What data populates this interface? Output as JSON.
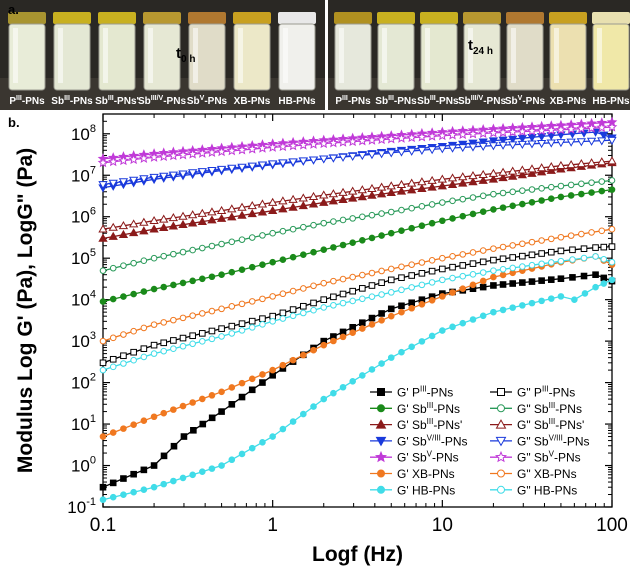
{
  "panel_a": {
    "label": "a.",
    "left_time": "t0 h",
    "left_time_main": "t",
    "left_time_sub": "0 h",
    "right_time_main": "t",
    "right_time_sub": "24 h",
    "left_vials": [
      {
        "main": "P",
        "sup": "III",
        "suffix": "-PNs",
        "liquid": "#e8ecd8",
        "cap": "#a89430"
      },
      {
        "main": "Sb",
        "sup": "III",
        "suffix": "-PNs",
        "liquid": "#e4e8d4",
        "cap": "#c8b020"
      },
      {
        "main": "Sb",
        "sup": "III",
        "suffix": "-PNs'",
        "liquid": "#e4e8d0",
        "cap": "#c8b020"
      },
      {
        "main": "Sb",
        "sup": "III/V",
        "suffix": "-PNs",
        "liquid": "#e6e8d4",
        "cap": "#b89830"
      },
      {
        "main": "Sb",
        "sup": "V",
        "suffix": "-PNs",
        "liquid": "#e0dcc8",
        "cap": "#b07830"
      },
      {
        "main": "XB-PNs",
        "sup": "",
        "suffix": "",
        "liquid": "#ece8c8",
        "cap": "#c8a020"
      },
      {
        "main": "HB-PNs",
        "sup": "",
        "suffix": "",
        "liquid": "#f0f0ec",
        "cap": "#e8e8e8"
      }
    ],
    "right_vials": [
      {
        "main": "P",
        "sup": "III",
        "suffix": "-PNs",
        "liquid": "#e6e8dc",
        "cap": "#b09020"
      },
      {
        "main": "Sb",
        "sup": "III",
        "suffix": "-PNs",
        "liquid": "#e4e8d4",
        "cap": "#c8b020"
      },
      {
        "main": "Sb",
        "sup": "III",
        "suffix": "-PNs'",
        "liquid": "#e4e8d0",
        "cap": "#c8b020"
      },
      {
        "main": "Sb",
        "sup": "III/V",
        "suffix": "-PNs",
        "liquid": "#e6e8d4",
        "cap": "#b89830"
      },
      {
        "main": "Sb",
        "sup": "V",
        "suffix": "-PNs",
        "liquid": "#e0dcc8",
        "cap": "#b07830"
      },
      {
        "main": "XB-PNs",
        "sup": "",
        "suffix": "",
        "liquid": "#ece0b0",
        "cap": "#c8a020"
      },
      {
        "main": "HB-PNs",
        "sup": "",
        "suffix": "",
        "liquid": "#f0e8a8",
        "cap": "#e8e0b0"
      }
    ]
  },
  "panel_b": {
    "label": "b."
  },
  "chart_data": {
    "type": "line",
    "xlabel": "Logf (Hz)",
    "ylabel": "Modulus Log G' (Pa), LogG\" (Pa)",
    "x_scale": "log",
    "y_scale": "log",
    "xlim": [
      0.1,
      100
    ],
    "ylim": [
      0.1,
      300000000
    ],
    "x_ticks": [
      "0.1",
      "1",
      "10",
      "100"
    ],
    "y_ticks": [
      "10-1",
      "100",
      "101",
      "102",
      "103",
      "104",
      "105",
      "106",
      "107",
      "108"
    ],
    "grid": false,
    "legend_position": "bottom-right",
    "series": [
      {
        "name": "G' PIII-PNs",
        "legend_main": "G' P",
        "legend_sup": "III",
        "legend_suffix": "-PNs",
        "color": "#000000",
        "marker": "square",
        "filled": true,
        "points": [
          [
            0.1,
            0.3
          ],
          [
            0.2,
            1
          ],
          [
            0.3,
            5
          ],
          [
            0.5,
            20
          ],
          [
            1,
            150
          ],
          [
            2,
            1000
          ],
          [
            5,
            6000
          ],
          [
            10,
            14000
          ],
          [
            20,
            22000
          ],
          [
            50,
            32000
          ],
          [
            80,
            40000
          ],
          [
            100,
            28000
          ]
        ]
      },
      {
        "name": "G\" PIII-PNs",
        "legend_main": "G\" P",
        "legend_sup": "III",
        "legend_suffix": "-PNs",
        "color": "#000000",
        "marker": "square",
        "filled": false,
        "points": [
          [
            0.1,
            300
          ],
          [
            0.2,
            800
          ],
          [
            0.5,
            2000
          ],
          [
            1,
            4000
          ],
          [
            2,
            10000
          ],
          [
            5,
            30000
          ],
          [
            10,
            55000
          ],
          [
            20,
            90000
          ],
          [
            50,
            150000
          ],
          [
            80,
            180000
          ],
          [
            100,
            190000
          ]
        ]
      },
      {
        "name": "G' SbIII-PNs",
        "legend_main": "G' Sb",
        "legend_sup": "III",
        "legend_suffix": "-PNs",
        "color": "#1a8a1a",
        "marker": "circle",
        "filled": true,
        "points": [
          [
            0.1,
            9000
          ],
          [
            0.2,
            18000
          ],
          [
            0.5,
            40000
          ],
          [
            1,
            80000
          ],
          [
            2,
            160000
          ],
          [
            5,
            400000
          ],
          [
            10,
            800000
          ],
          [
            20,
            1500000
          ],
          [
            50,
            3000000
          ],
          [
            100,
            4500000
          ]
        ]
      },
      {
        "name": "G\" SbIII-PNs",
        "legend_main": "G\" Sb",
        "legend_sup": "III",
        "legend_suffix": "-PNs",
        "color": "#2a9a5a",
        "marker": "circle",
        "filled": false,
        "points": [
          [
            0.1,
            50000
          ],
          [
            0.2,
            100000
          ],
          [
            0.5,
            220000
          ],
          [
            1,
            400000
          ],
          [
            2,
            700000
          ],
          [
            5,
            1300000
          ],
          [
            10,
            2200000
          ],
          [
            20,
            3500000
          ],
          [
            50,
            5500000
          ],
          [
            100,
            7500000
          ]
        ]
      },
      {
        "name": "G' SbIII-PNs'",
        "legend_main": "G' Sb",
        "legend_sup": "III",
        "legend_suffix": "-PNs'",
        "color": "#8b1a1a",
        "marker": "triangle",
        "filled": true,
        "points": [
          [
            0.1,
            300000
          ],
          [
            0.2,
            500000
          ],
          [
            0.5,
            900000
          ],
          [
            1,
            1400000
          ],
          [
            2,
            2200000
          ],
          [
            5,
            3800000
          ],
          [
            10,
            5500000
          ],
          [
            20,
            8000000
          ],
          [
            50,
            14000000
          ],
          [
            100,
            20000000
          ]
        ]
      },
      {
        "name": "G\" SbIII-PNs'",
        "legend_main": "G\" Sb",
        "legend_sup": "III",
        "legend_suffix": "-PNs'",
        "color": "#8b1a1a",
        "marker": "triangle",
        "filled": false,
        "points": [
          [
            0.1,
            500000
          ],
          [
            0.2,
            800000
          ],
          [
            0.5,
            1400000
          ],
          [
            1,
            2200000
          ],
          [
            2,
            3300000
          ],
          [
            5,
            5500000
          ],
          [
            10,
            8000000
          ],
          [
            20,
            11000000
          ],
          [
            50,
            17000000
          ],
          [
            100,
            22000000
          ]
        ]
      },
      {
        "name": "G' SbV/III-PNs",
        "legend_main": "G' Sb",
        "legend_sup": "V/III",
        "legend_suffix": "-PNs",
        "color": "#1a3adc",
        "marker": "triangle-down",
        "filled": true,
        "points": [
          [
            0.1,
            5000000
          ],
          [
            0.2,
            8000000
          ],
          [
            0.5,
            13000000
          ],
          [
            1,
            18000000
          ],
          [
            2,
            25000000
          ],
          [
            5,
            38000000
          ],
          [
            10,
            50000000
          ],
          [
            20,
            68000000
          ],
          [
            50,
            95000000
          ],
          [
            80,
            110000000
          ],
          [
            100,
            80000000
          ]
        ]
      },
      {
        "name": "G\" SbV/III-PNs",
        "legend_main": "G\" Sb",
        "legend_sup": "V/III",
        "legend_suffix": "-PNs",
        "color": "#1a3adc",
        "marker": "triangle-down",
        "filled": false,
        "points": [
          [
            0.1,
            6000000
          ],
          [
            0.2,
            9000000
          ],
          [
            0.5,
            14000000
          ],
          [
            1,
            19000000
          ],
          [
            2,
            25000000
          ],
          [
            5,
            35000000
          ],
          [
            10,
            44000000
          ],
          [
            20,
            52000000
          ],
          [
            50,
            62000000
          ],
          [
            100,
            70000000
          ]
        ]
      },
      {
        "name": "G' SbV-PNs",
        "legend_main": "G' Sb",
        "legend_sup": "V",
        "legend_suffix": "-PNs",
        "color": "#c03ad8",
        "marker": "star",
        "filled": true,
        "points": [
          [
            0.1,
            25000000
          ],
          [
            0.2,
            33000000
          ],
          [
            0.5,
            45000000
          ],
          [
            1,
            57000000
          ],
          [
            2,
            70000000
          ],
          [
            5,
            90000000
          ],
          [
            10,
            110000000
          ],
          [
            20,
            130000000
          ],
          [
            50,
            160000000
          ],
          [
            100,
            190000000
          ]
        ]
      },
      {
        "name": "G\" SbV-PNs",
        "legend_main": "G\" Sb",
        "legend_sup": "V",
        "legend_suffix": "-PNs",
        "color": "#c03ad8",
        "marker": "star",
        "filled": false,
        "points": [
          [
            0.1,
            20000000
          ],
          [
            0.2,
            27000000
          ],
          [
            0.5,
            37000000
          ],
          [
            1,
            47000000
          ],
          [
            2,
            58000000
          ],
          [
            5,
            75000000
          ],
          [
            10,
            90000000
          ],
          [
            20,
            105000000
          ],
          [
            50,
            125000000
          ],
          [
            100,
            145000000
          ]
        ]
      },
      {
        "name": "G' XB-PNs",
        "legend_main": "G' XB-PNs",
        "legend_sup": "",
        "legend_suffix": "",
        "color": "#f07820",
        "marker": "circle",
        "filled": true,
        "points": [
          [
            0.1,
            5
          ],
          [
            0.2,
            15
          ],
          [
            0.5,
            60
          ],
          [
            1,
            200
          ],
          [
            2,
            800
          ],
          [
            5,
            4000
          ],
          [
            10,
            12000
          ],
          [
            20,
            35000
          ],
          [
            50,
            80000
          ],
          [
            80,
            110000
          ],
          [
            100,
            70000
          ]
        ]
      },
      {
        "name": "G\" XB-PNs",
        "legend_main": "G\" XB-PNs",
        "legend_sup": "",
        "legend_suffix": "",
        "color": "#f07820",
        "marker": "circle",
        "filled": false,
        "points": [
          [
            0.1,
            1000
          ],
          [
            0.2,
            2500
          ],
          [
            0.5,
            6000
          ],
          [
            1,
            12000
          ],
          [
            2,
            25000
          ],
          [
            5,
            55000
          ],
          [
            10,
            100000
          ],
          [
            20,
            170000
          ],
          [
            50,
            320000
          ],
          [
            100,
            500000
          ]
        ]
      },
      {
        "name": "G' HB-PNs",
        "legend_main": "G' HB-PNs",
        "legend_sup": "",
        "legend_suffix": "",
        "color": "#40dce8",
        "marker": "circle",
        "filled": true,
        "points": [
          [
            0.1,
            0.15
          ],
          [
            0.2,
            0.3
          ],
          [
            0.5,
            1
          ],
          [
            1,
            5
          ],
          [
            2,
            40
          ],
          [
            5,
            400
          ],
          [
            10,
            1800
          ],
          [
            20,
            5000
          ],
          [
            50,
            12000
          ],
          [
            60,
            10000
          ],
          [
            80,
            20000
          ],
          [
            100,
            30000
          ]
        ]
      },
      {
        "name": "G\" HB-PNs",
        "legend_main": "G\" HB-PNs",
        "legend_sup": "",
        "legend_suffix": "",
        "color": "#40dce8",
        "marker": "circle",
        "filled": false,
        "points": [
          [
            0.1,
            200
          ],
          [
            0.2,
            500
          ],
          [
            0.5,
            1300
          ],
          [
            1,
            3000
          ],
          [
            2,
            6500
          ],
          [
            5,
            15000
          ],
          [
            10,
            30000
          ],
          [
            20,
            50000
          ],
          [
            50,
            85000
          ],
          [
            80,
            110000
          ],
          [
            100,
            80000
          ]
        ]
      }
    ]
  }
}
